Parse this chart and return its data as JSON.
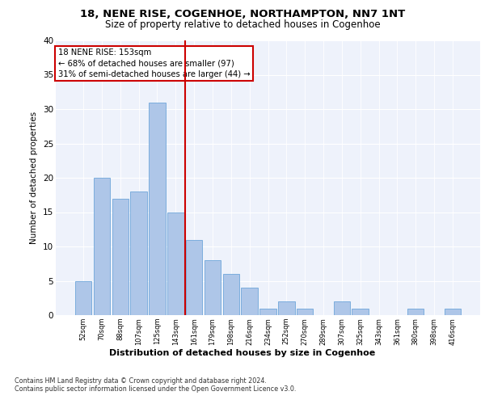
{
  "title1": "18, NENE RISE, COGENHOE, NORTHAMPTON, NN7 1NT",
  "title2": "Size of property relative to detached houses in Cogenhoe",
  "xlabel": "Distribution of detached houses by size in Cogenhoe",
  "ylabel": "Number of detached properties",
  "categories": [
    "52sqm",
    "70sqm",
    "88sqm",
    "107sqm",
    "125sqm",
    "143sqm",
    "161sqm",
    "179sqm",
    "198sqm",
    "216sqm",
    "234sqm",
    "252sqm",
    "270sqm",
    "289sqm",
    "307sqm",
    "325sqm",
    "343sqm",
    "361sqm",
    "380sqm",
    "398sqm",
    "416sqm"
  ],
  "values": [
    5,
    20,
    17,
    18,
    31,
    15,
    11,
    8,
    6,
    4,
    1,
    2,
    1,
    0,
    2,
    1,
    0,
    0,
    1,
    0,
    1
  ],
  "bar_color": "#aec6e8",
  "bar_edgecolor": "#5b9bd5",
  "vline_x": 5.5,
  "vline_color": "#cc0000",
  "annotation_text": "18 NENE RISE: 153sqm\n← 68% of detached houses are smaller (97)\n31% of semi-detached houses are larger (44) →",
  "annotation_box_edgecolor": "#cc0000",
  "ylim": [
    0,
    40
  ],
  "yticks": [
    0,
    5,
    10,
    15,
    20,
    25,
    30,
    35,
    40
  ],
  "footer1": "Contains HM Land Registry data © Crown copyright and database right 2024.",
  "footer2": "Contains public sector information licensed under the Open Government Licence v3.0.",
  "plot_background": "#eef2fb"
}
